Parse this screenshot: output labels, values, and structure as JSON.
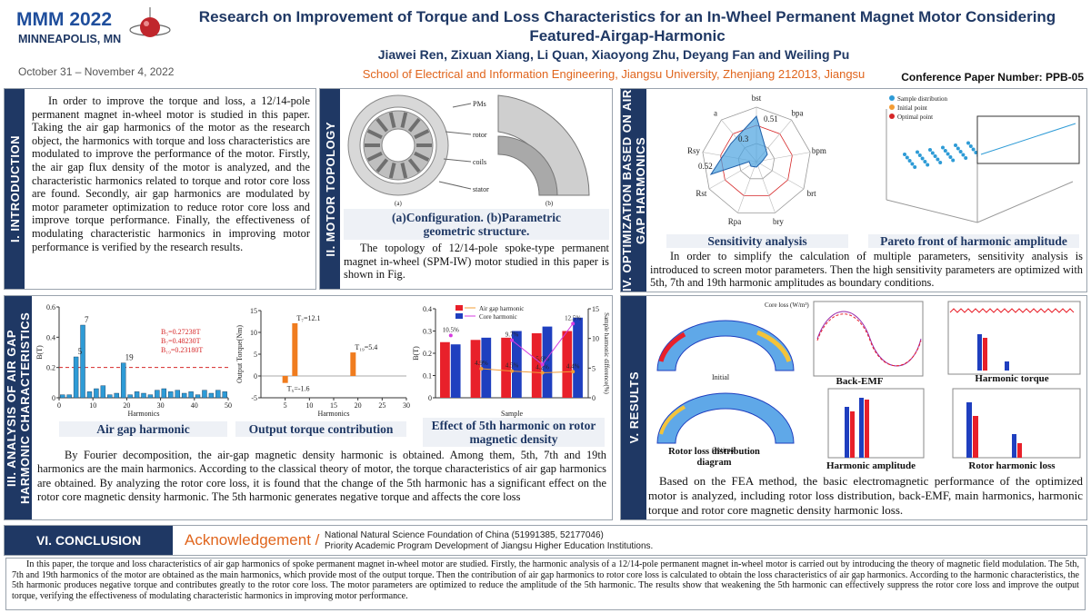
{
  "header": {
    "logo": "MMM 2022",
    "location": "MINNEAPOLIS, MN",
    "dates": "October 31 – November 4, 2022",
    "title": "Research on Improvement of Torque and Loss Characteristics for an In-Wheel Permanent Magnet Motor Considering Featured-Airgap-Harmonic",
    "authors": "Jiawei Ren, Zixuan Xiang, Li Quan, Xiaoyong Zhu, Deyang Fan and Weiling Pu",
    "affiliation": "School of Electrical and Information Engineering, Jiangsu University, Zhenjiang 212013, Jiangsu",
    "paper_number": "Conference Paper Number: PPB-05"
  },
  "introduction": {
    "heading": "I. INTRODUCTION",
    "text": "In order to improve the torque and loss, a 12/14-pole permanent magnet in-wheel motor is studied in this paper. Taking the air gap harmonics of the motor as the research object, the harmonics with torque and loss characteristics are modulated to improve the performance of the motor. Firstly, the air gap flux density of the motor is analyzed, and the characteristic harmonics related to torque and rotor core loss are found. Secondly, air gap harmonics are modulated by motor parameter optimization to reduce rotor core loss and improve torque performance. Finally, the effectiveness of modulating characteristic harmonics in improving motor performance is verified by the research results."
  },
  "topology": {
    "heading": "II. MOTOR TOPOLOGY",
    "figure_labels": [
      "PMs",
      "rotor",
      "coils",
      "stator",
      "(a)",
      "(b)"
    ],
    "caption": "(a)Configuration. (b)Parametric geometric structure.",
    "text": "The topology of 12/14-pole spoke-type permanent magnet in-wheel (SPM-IW) motor studied in this paper is shown in Fig."
  },
  "analysis": {
    "heading": "III. ANALYSIS OF AIR GAP HARMONIC CHARACTERISTICS",
    "captions": [
      "Air gap harmonic",
      "Output torque contribution",
      "Effect of 5th harmonic on rotor magnetic density"
    ],
    "text": "By Fourier decomposition, the air-gap magnetic density harmonic is obtained. Among them, 5th, 7th and 19th harmonics are the main harmonics.  According to the classical theory of motor, the torque characteristics of air gap harmonics are obtained. By analyzing the rotor core loss, it is found that the change of the 5th harmonic has a significant effect on the rotor core magnetic density harmonic. The 5th harmonic generates negative torque and affects the core loss",
    "charts": [
      {
        "type": "bar",
        "xlabel": "Harmonics",
        "ylabel": "B(T)",
        "color": "#2e9bd6",
        "x": [
          1,
          3,
          5,
          7,
          9,
          11,
          13,
          15,
          17,
          19,
          21,
          23,
          25,
          27,
          29,
          31,
          33,
          35,
          37,
          39,
          41,
          43,
          45,
          47,
          49
        ],
        "values": [
          0.02,
          0.02,
          0.27,
          0.48,
          0.04,
          0.06,
          0.08,
          0.02,
          0.03,
          0.23,
          0.02,
          0.04,
          0.03,
          0.02,
          0.05,
          0.06,
          0.04,
          0.05,
          0.03,
          0.04,
          0.02,
          0.05,
          0.03,
          0.05,
          0.04
        ],
        "labeled": [
          2,
          3,
          9
        ],
        "xlim": [
          0,
          50
        ],
        "xticks": [
          0,
          10,
          20,
          30,
          40,
          50
        ],
        "ylim": [
          0,
          0.6
        ],
        "yticks": [
          0,
          0.2,
          0.4,
          0.6
        ],
        "threshold": 0.2,
        "threshold_color": "#d62728",
        "annotations": [
          "B₅=0.27238T",
          "B₇=0.48230T",
          "B₁₉=0.23180T"
        ]
      },
      {
        "type": "bar",
        "xlabel": "Harmonics",
        "ylabel": "Output Torque(Nm)",
        "color": "#f07c1e",
        "x": [
          5,
          7,
          19
        ],
        "values": [
          -1.6,
          12.1,
          5.4
        ],
        "value_labels": [
          "T₅=-1.6",
          "T₇=12.1",
          "T₁₉=5.4"
        ],
        "xlim": [
          0,
          30
        ],
        "xticks": [
          5,
          10,
          15,
          20,
          25,
          30
        ],
        "ylim": [
          -5,
          15
        ],
        "yticks": [
          -5,
          0,
          5,
          10,
          15
        ]
      },
      {
        "type": "bar",
        "xlabel": "Sample",
        "ylabel": "B(T)",
        "y2label": "Sample harmonic difference(%)",
        "categories": [
          null,
          null,
          null,
          null,
          null
        ],
        "series": [
          {
            "name": "Air gap harmonic",
            "color": "#e8202a",
            "values": [
              0.25,
              0.26,
              0.27,
              0.29,
              0.3
            ]
          },
          {
            "name": "Core harmonic",
            "color": "#1f3fbf",
            "values": [
              0.24,
              0.27,
              0.3,
              0.32,
              0.36
            ]
          },
          {
            "name": "Air gap harmonic",
            "color": "#f39c34",
            "axis": "y2",
            "values": [
              null,
              4.9,
              4.5,
              4.2,
              4.4
            ],
            "value_labels": [
              null,
              "4.9%",
              "4.5%",
              "4.2%",
              "4.4%"
            ]
          },
          {
            "name": "Core harmonic",
            "color": "#d63ce0",
            "axis": "y2",
            "values": [
              10.5,
              null,
              9.7,
              5.6,
              12.5
            ],
            "value_labels": [
              "10.5%",
              null,
              "9.7%",
              "5.6%",
              "12.5%"
            ]
          }
        ],
        "ylim": [
          0,
          0.4
        ],
        "yticks": [
          0,
          0.1,
          0.2,
          0.3,
          0.4
        ],
        "y2lim": [
          0,
          15
        ],
        "y2ticks": [
          0,
          5,
          10,
          15
        ]
      }
    ]
  },
  "optimization": {
    "heading": "IV. OPTIMIZATION BASED ON AIR GAP HARMONICS",
    "radar_labels": [
      "bst",
      "bpa",
      "bpm",
      "brt",
      "bry",
      "Rpa",
      "Rst",
      "Rsy",
      "a"
    ],
    "radar_values": [
      "0.51",
      "0.3",
      "0.52"
    ],
    "pareto_legend": [
      "Sample distribution",
      "Initial point",
      "Optimal point"
    ],
    "captions": [
      "Sensitivity analysis",
      "Pareto front of harmonic amplitude"
    ],
    "text": "In order to simplify the calculation of multiple parameters, sensitivity analysis is introduced to screen motor parameters. Then the high sensitivity parameters are optimized with 5th, 7th and 19th harmonic amplitudes as boundary conditions."
  },
  "results": {
    "heading": "V. RESULTS",
    "figure_labels": [
      "Initial",
      "Optimal",
      "Core loss (W/m³)"
    ],
    "captions": [
      "Rotor loss distribution diagram",
      "Back-EMF",
      "Harmonic torque",
      "Harmonic amplitude",
      "Rotor harmonic loss"
    ],
    "text": "Based on the FEA method, the basic electromagnetic performance of the optimized motor is analyzed, including rotor loss distribution, back-EMF, main harmonics, harmonic torque and rotor core magnetic density harmonic loss."
  },
  "conclusion": {
    "heading": "VI. CONCLUSION",
    "acknowledgement_label": "Acknowledgement /",
    "acknowledgement": [
      "National Natural Science Foundation of China (51991385, 52177046)",
      "Priority Academic Program Development of Jiangsu Higher Education Institutions."
    ],
    "text": "In this paper, the torque and loss characteristics of air gap harmonics of spoke permanent magnet in-wheel motor are studied. Firstly, the harmonic analysis of a 12/14-pole permanent magnet in-wheel motor is carried out by introducing the theory of magnetic field modulation. The 5th, 7th and 19th harmonics of the motor are obtained as the main harmonics, which provide most of the output torque. Then the contribution of air gap harmonics to rotor core loss is calculated to obtain the loss characteristics of air gap harmonics. According to the harmonic characteristics, the 5th harmonic produces negative torque and contributes greatly to the rotor core loss. The motor parameters are optimized to reduce the amplitude of the 5th harmonic. The results show that weakening the 5th harmonic can effectively suppress the rotor core loss and improve the output torque, verifying the effectiveness of modulating characteristic harmonics in improving motor performance."
  }
}
